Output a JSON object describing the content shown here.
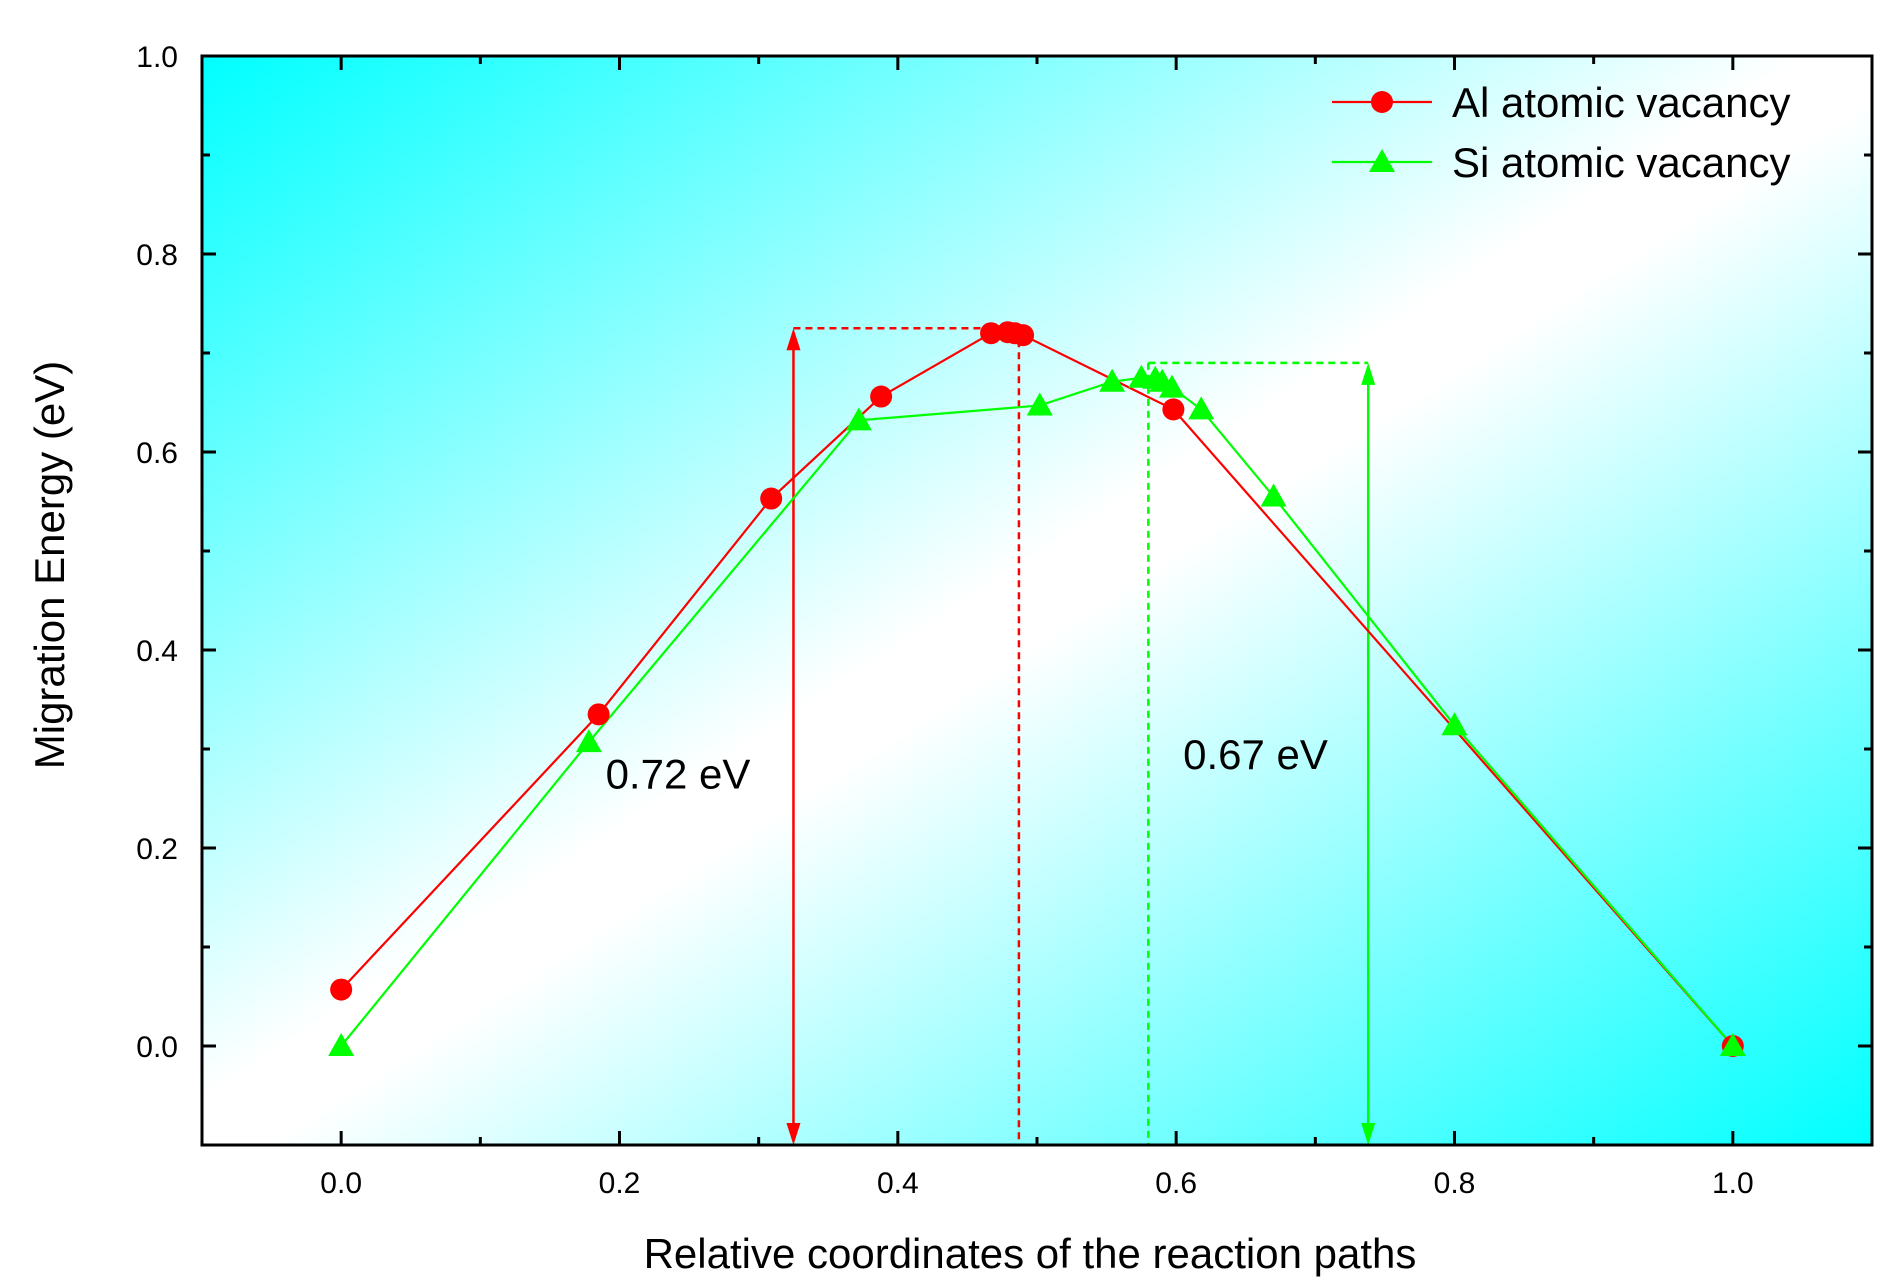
{
  "chart_data": {
    "type": "line",
    "title": "",
    "xlabel": "Relative coordinates of the reaction paths",
    "ylabel": "Migration Energy (eV)",
    "xlim": [
      -0.1,
      1.1
    ],
    "ylim": [
      -0.1,
      1.0
    ],
    "xticks": [
      0.0,
      0.2,
      0.4,
      0.6,
      0.8,
      1.0
    ],
    "xtick_labels": [
      "0.0",
      "0.2",
      "0.4",
      "0.6",
      "0.8",
      "1.0"
    ],
    "yticks": [
      0.0,
      0.2,
      0.4,
      0.6,
      0.8,
      1.0
    ],
    "ytick_labels": [
      "0.0",
      "0.2",
      "0.4",
      "0.6",
      "0.8",
      "1.0"
    ],
    "grid": false,
    "legend_position": "top-right",
    "series": [
      {
        "name": "Al atomic vacancy",
        "color": "#ff0000",
        "marker": "circle",
        "x": [
          0.0,
          0.185,
          0.309,
          0.388,
          0.467,
          0.479,
          0.484,
          0.49,
          0.598,
          1.0
        ],
        "y": [
          0.057,
          0.335,
          0.553,
          0.656,
          0.72,
          0.721,
          0.72,
          0.718,
          0.643,
          0.0
        ]
      },
      {
        "name": "Si atomic vacancy",
        "color": "#00ff00",
        "marker": "triangle",
        "x": [
          0.0,
          0.178,
          0.372,
          0.502,
          0.554,
          0.575,
          0.585,
          0.59,
          0.597,
          0.618,
          0.67,
          0.8,
          1.0
        ],
        "y": [
          0.0,
          0.307,
          0.632,
          0.647,
          0.671,
          0.675,
          0.674,
          0.671,
          0.665,
          0.643,
          0.555,
          0.324,
          0.0
        ]
      }
    ],
    "annotations": [
      {
        "text": "0.72 eV",
        "color": "#ff0000",
        "arrow_x": 0.325,
        "arrow_from": -0.1,
        "arrow_to": 0.725,
        "ref_line_x": 0.487,
        "label_x": 0.19,
        "label_y": 0.26
      },
      {
        "text": "0.67 eV",
        "color": "#00ff00",
        "arrow_x": 0.738,
        "arrow_from": -0.1,
        "arrow_to": 0.69,
        "ref_line_x": 0.58,
        "label_x": 0.605,
        "label_y": 0.28
      }
    ],
    "background_gradient": {
      "corner_color": "#00ffff",
      "center_color": "#ffffff"
    }
  }
}
